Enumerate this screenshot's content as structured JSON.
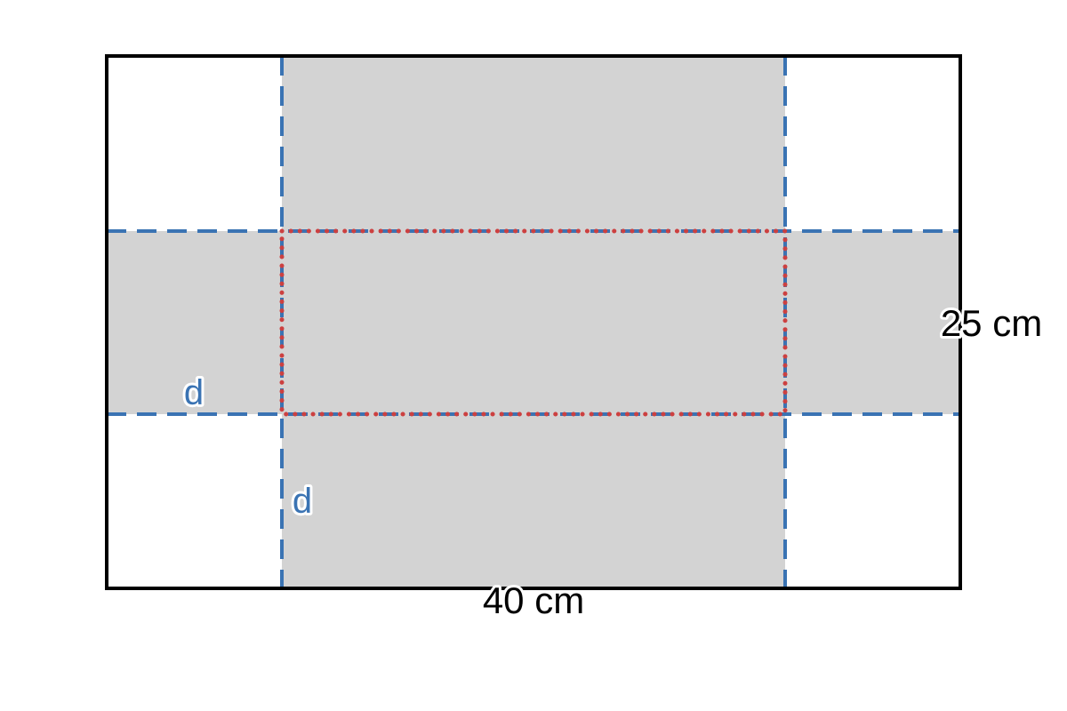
{
  "labels": {
    "width": "40 cm",
    "height": "25 cm",
    "cut_horizontal": "d",
    "cut_vertical": "d"
  },
  "colors": {
    "outline": "#000000",
    "fold_lines": "#3a73b3",
    "base_outline": "#cc4040",
    "net_fill": "#d3d3d3",
    "label_d": "#3a73b3",
    "label_dim": "#000000"
  }
}
